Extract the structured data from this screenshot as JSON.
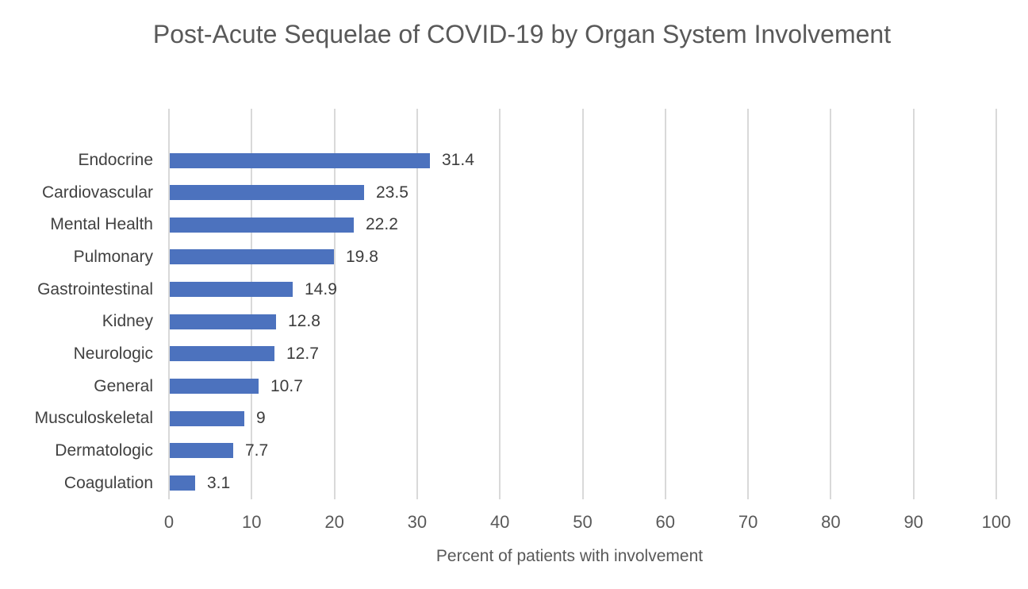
{
  "page": {
    "background_color": "#ffffff"
  },
  "chart_data": {
    "type": "bar",
    "orientation": "horizontal",
    "title": "Post-Acute Sequelae of COVID-19 by Organ System Involvement",
    "xlabel": "Percent of patients with involvement",
    "categories": [
      "Endocrine",
      "Cardiovascular",
      "Mental Health",
      "Pulmonary",
      "Gastrointestinal",
      "Kidney",
      "Neurologic",
      "General",
      "Musculoskeletal",
      "Dermatologic",
      "Coagulation"
    ],
    "values": [
      31.4,
      23.5,
      22.2,
      19.8,
      14.9,
      12.8,
      12.7,
      10.7,
      9,
      7.7,
      3.1
    ],
    "data_labels": [
      "31.4",
      "23.5",
      "22.2",
      "19.8",
      "14.9",
      "12.8",
      "12.7",
      "10.7",
      "9",
      "7.7",
      "3.1"
    ],
    "xlim": [
      0,
      100
    ],
    "xticks": [
      0,
      10,
      20,
      30,
      40,
      50,
      60,
      70,
      80,
      90,
      100
    ],
    "grid": true,
    "legend": "none",
    "colors": {
      "bar": "#4c72be",
      "gridline": "#d9d9d9",
      "title": "#595959",
      "tick_labels": "#595959",
      "category_labels": "#414141",
      "data_labels": "#3d3d3d"
    }
  }
}
